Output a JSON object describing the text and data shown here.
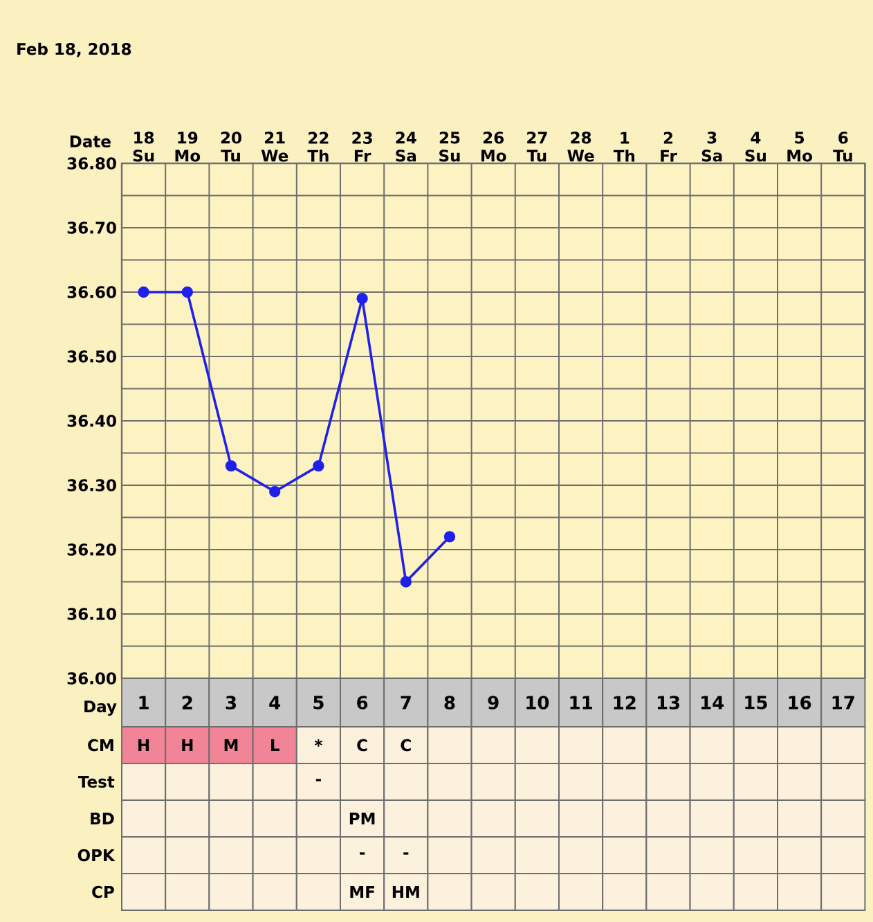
{
  "chart_data": [
    {
      "type": "line",
      "title": "Feb 18, 2018",
      "xlabel": "Date",
      "categories": [
        "18 Su",
        "19 Mo",
        "20 Tu",
        "21 We",
        "22 Th",
        "23 Fr",
        "24 Sa",
        "25 Su",
        "26 Mo",
        "27 Tu",
        "28 We",
        "1 Th",
        "2 Fr",
        "3 Sa",
        "4 Su",
        "5 Mo",
        "6 Tu"
      ],
      "series": [
        {
          "color": "#1f1fee",
          "values": [
            36.6,
            36.6,
            36.33,
            36.29,
            36.33,
            36.59,
            36.15,
            36.22,
            null,
            null,
            null,
            null,
            null,
            null,
            null,
            null,
            null
          ]
        }
      ],
      "ylim": [
        36.0,
        36.8
      ],
      "yticks": [
        {
          "value": 36.0,
          "label": "36.00"
        },
        {
          "value": 36.1,
          "label": "36.10"
        },
        {
          "value": 36.2,
          "label": "36.20"
        },
        {
          "value": 36.3,
          "label": "36.30"
        },
        {
          "value": 36.4,
          "label": "36.40"
        },
        {
          "value": 36.5,
          "label": "36.50"
        },
        {
          "value": 36.6,
          "label": "36.60"
        },
        {
          "value": 36.7,
          "label": "36.70"
        },
        {
          "value": 36.8,
          "label": "36.80"
        }
      ],
      "grid": true,
      "marker": "circle",
      "line_style": "solid"
    },
    {
      "type": "heatmap",
      "xlabel": "Day",
      "categories": [
        "1",
        "2",
        "3",
        "4",
        "5",
        "6",
        "7",
        "8",
        "9",
        "10",
        "11",
        "12",
        "13",
        "14",
        "15",
        "16",
        "17"
      ],
      "y_categories": [
        "CM",
        "Test",
        "BD",
        "OPK",
        "CP"
      ],
      "cells": [
        [
          null,
          null,
          null,
          null,
          null,
          null,
          null,
          null,
          null,
          null,
          null,
          null,
          null,
          null,
          null,
          null,
          null
        ],
        [
          null,
          null,
          null,
          null,
          null,
          null,
          null,
          null,
          null,
          null,
          null,
          null,
          null,
          null,
          null,
          null,
          null
        ],
        [
          null,
          null,
          null,
          null,
          null,
          null,
          null,
          null,
          null,
          null,
          null,
          null,
          null,
          null,
          null,
          null,
          null
        ],
        [
          null,
          null,
          null,
          null,
          null,
          null,
          null,
          null,
          null,
          null,
          null,
          null,
          null,
          null,
          null,
          null,
          null
        ],
        [
          null,
          null,
          null,
          null,
          null,
          null,
          null,
          null,
          null,
          null,
          null,
          null,
          null,
          null,
          null,
          null,
          null
        ]
      ],
      "cell_labels": [
        [
          "H",
          "H",
          "M",
          "L",
          "*",
          "C",
          "C",
          null,
          null,
          null,
          null,
          null,
          null,
          null,
          null,
          null,
          null
        ],
        [
          null,
          null,
          null,
          null,
          "-",
          null,
          null,
          null,
          null,
          null,
          null,
          null,
          null,
          null,
          null,
          null,
          null
        ],
        [
          null,
          null,
          null,
          null,
          null,
          "PM",
          null,
          null,
          null,
          null,
          null,
          null,
          null,
          null,
          null,
          null,
          null
        ],
        [
          null,
          null,
          null,
          null,
          null,
          "-",
          "-",
          null,
          null,
          null,
          null,
          null,
          null,
          null,
          null,
          null,
          null
        ],
        [
          null,
          null,
          null,
          null,
          null,
          "MF",
          "HM",
          null,
          null,
          null,
          null,
          null,
          null,
          null,
          null,
          null,
          null
        ]
      ],
      "colors": [
        [
          "#f28498",
          "#f28498",
          "#f28498",
          "#f28498",
          null,
          null,
          null,
          null,
          null,
          null,
          null,
          null,
          null,
          null,
          null,
          null,
          null
        ],
        [
          null,
          null,
          null,
          null,
          null,
          null,
          null,
          null,
          null,
          null,
          null,
          null,
          null,
          null,
          null,
          null,
          null
        ],
        [
          null,
          null,
          null,
          null,
          null,
          null,
          null,
          null,
          null,
          null,
          null,
          null,
          null,
          null,
          null,
          null,
          null
        ],
        [
          null,
          null,
          null,
          null,
          null,
          null,
          null,
          null,
          null,
          null,
          null,
          null,
          null,
          null,
          null,
          null,
          null
        ],
        [
          null,
          null,
          null,
          null,
          null,
          null,
          null,
          null,
          null,
          null,
          null,
          null,
          null,
          null,
          null,
          null,
          null
        ]
      ]
    }
  ]
}
